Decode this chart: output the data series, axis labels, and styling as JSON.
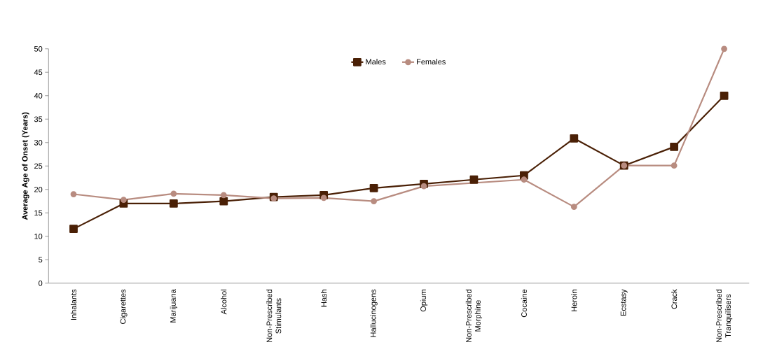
{
  "chart_data": {
    "type": "line",
    "ylabel": "Average Age of Onset (Years)",
    "categories": [
      "Inhalants",
      "Cigarettes",
      "Marijuana",
      "Alcohol",
      "Non-Prescribed Stimulants",
      "Hash",
      "Hallucinogens",
      "Opium",
      "Non-Prescribed Morphine",
      "Cocaine",
      "Heroin",
      "Ecstasy",
      "Crack",
      "Non-Prescribed Tranquilisers"
    ],
    "series": [
      {
        "name": "Males",
        "color": "#4a2006",
        "marker": "square",
        "values": [
          11.6,
          17.0,
          17.0,
          17.5,
          18.4,
          18.8,
          20.3,
          21.2,
          22.1,
          23.0,
          30.9,
          25.1,
          29.1,
          40.0
        ]
      },
      {
        "name": "Females",
        "color": "#b88c80",
        "marker": "circle",
        "values": [
          19.0,
          17.8,
          19.1,
          18.8,
          18.1,
          18.2,
          17.5,
          20.7,
          null,
          22.1,
          16.3,
          25.1,
          25.1,
          50.0
        ]
      }
    ],
    "ylim": [
      0,
      50
    ],
    "yticks": [
      0,
      5,
      10,
      15,
      20,
      25,
      30,
      35,
      40,
      45,
      50
    ],
    "grid": false,
    "legend": "top",
    "line_style": "solid"
  }
}
